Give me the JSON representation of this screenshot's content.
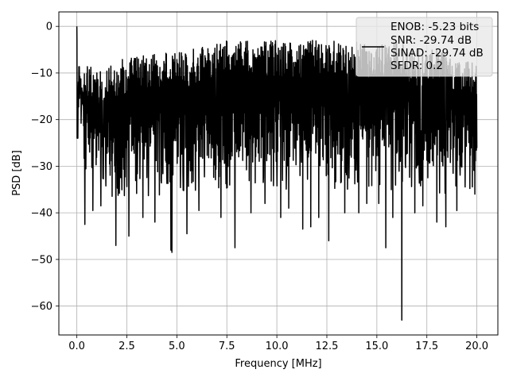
{
  "chart_data": {
    "type": "line",
    "title": "",
    "xlabel": "Frequency [MHz]",
    "ylabel": "PSD [dB]",
    "xlim": [
      -0.9,
      21.05
    ],
    "ylim": [
      -66.2,
      3.1
    ],
    "xticks": [
      0.0,
      2.5,
      5.0,
      7.5,
      10.0,
      12.5,
      15.0,
      17.5,
      20.0
    ],
    "xtick_labels": [
      "0.0",
      "2.5",
      "5.0",
      "7.5",
      "10.0",
      "12.5",
      "15.0",
      "17.5",
      "20.0"
    ],
    "yticks": [
      0,
      -10,
      -20,
      -30,
      -40,
      -50,
      -60
    ],
    "ytick_labels": [
      "0",
      "−10",
      "−20",
      "−30",
      "−40",
      "−50",
      "−60"
    ],
    "grid": true,
    "legend": {
      "placement": "top-right",
      "entries": [
        "ENOB: -5.23 bits",
        "SNR: -29.74 dB",
        "SINAD: -29.74 dB",
        "SFDR: 0.2"
      ]
    },
    "series": [
      {
        "color": "#000000",
        "description": "Dense noise-like PSD from 0 to 20 MHz; upper envelope and deep minima listed as sampled points",
        "upper_envelope": {
          "x": [
            0.0,
            0.03,
            0.1,
            0.2,
            0.5,
            1.0,
            1.5,
            2.0,
            2.5,
            3.0,
            3.5,
            4.0,
            4.5,
            5.0,
            5.5,
            6.0,
            6.5,
            7.0,
            7.5,
            8.0,
            8.5,
            9.0,
            9.5,
            10.0,
            10.5,
            11.0,
            11.5,
            12.0,
            12.5,
            13.0,
            13.5,
            14.0,
            14.5,
            15.0,
            15.5,
            16.0,
            16.5,
            17.0,
            17.5,
            18.0,
            18.5,
            19.0,
            19.5,
            20.0
          ],
          "y": [
            0.0,
            -3,
            -7,
            -10,
            -8.5,
            -9,
            -8,
            -7,
            -7,
            -6.5,
            -6,
            -5.5,
            -5.5,
            -5.5,
            -5.5,
            -4.5,
            -4.5,
            -3.5,
            -3,
            -3.5,
            -3,
            -4,
            -3,
            -3,
            -3.5,
            -3.5,
            -3,
            -3,
            -3.5,
            -3,
            -4,
            -3,
            -3.5,
            -3,
            -4,
            -3,
            -4,
            -5,
            -5,
            -5,
            -6,
            -7,
            -7,
            -8
          ]
        },
        "lower_band": {
          "x": [
            0.0,
            1.0,
            2.5,
            5.0,
            7.5,
            10.0,
            12.5,
            15.0,
            17.5,
            20.0
          ],
          "y": [
            -25,
            -30,
            -31,
            -30,
            -29,
            -29,
            -29,
            -29,
            -30,
            -31
          ]
        },
        "minima": {
          "x": [
            0.05,
            0.4,
            0.8,
            1.2,
            1.95,
            2.6,
            3.3,
            3.9,
            4.7,
            4.75,
            5.5,
            6.1,
            7.2,
            7.9,
            8.7,
            9.4,
            10.2,
            10.6,
            11.3,
            11.7,
            12.1,
            12.6,
            13.4,
            14.1,
            14.5,
            15.1,
            15.45,
            15.8,
            16.25,
            16.9,
            17.3,
            18.0,
            18.45,
            19.0,
            19.9
          ],
          "y": [
            -24,
            -42.5,
            -39.5,
            -38.5,
            -47,
            -45,
            -41,
            -42,
            -48,
            -48.5,
            -44.5,
            -39.5,
            -41,
            -47.5,
            -40,
            -38,
            -41,
            -39,
            -43.5,
            -43,
            -41,
            -46,
            -40,
            -40,
            -38,
            -38,
            -47.5,
            -41,
            -63,
            -40,
            -38.5,
            -42,
            -43,
            -39.5,
            -36
          ]
        },
        "n_points": 1600
      }
    ]
  }
}
